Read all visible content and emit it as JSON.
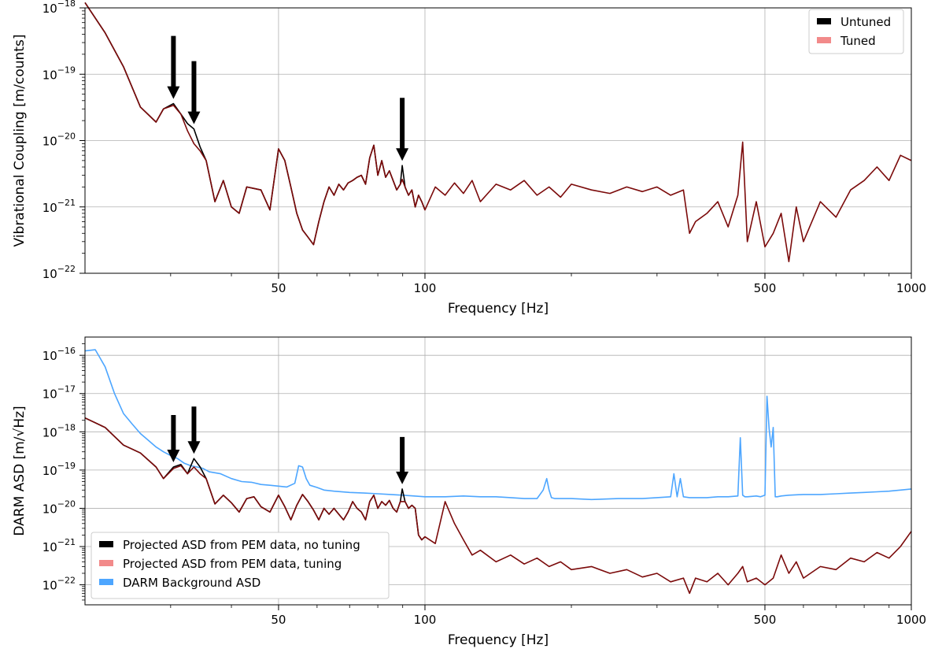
{
  "chart_data": [
    {
      "type": "line",
      "xlabel": "Frequency [Hz]",
      "ylabel": "Vibrational Coupling [m/counts]",
      "xscale": "log",
      "yscale": "log",
      "xlim": [
        20,
        1000
      ],
      "ylim": [
        1e-22,
        1e-18
      ],
      "xtick_labels": [
        {
          "value": 50,
          "label": "50"
        },
        {
          "value": 100,
          "label": "100"
        },
        {
          "value": 500,
          "label": "500"
        },
        {
          "value": 1000,
          "label": "1000"
        }
      ],
      "ytick_labels": [
        {
          "value": 1e-22,
          "base": "10",
          "exp": "−22"
        },
        {
          "value": 1e-21,
          "base": "10",
          "exp": "−21"
        },
        {
          "value": 1e-20,
          "base": "10",
          "exp": "−20"
        },
        {
          "value": 1e-19,
          "base": "10",
          "exp": "−19"
        },
        {
          "value": 1e-18,
          "base": "10",
          "exp": "−18"
        }
      ],
      "grid": true,
      "legend": "top-right",
      "arrows_at": [
        {
          "x": 30.4,
          "y": 3.6e-20
        },
        {
          "x": 33.5,
          "y": 1.5e-20
        },
        {
          "x": 89.8,
          "y": 4.2e-21
        }
      ],
      "series": [
        {
          "name": "Untuned",
          "color": "#000000",
          "legend_color": "#000000",
          "x": [
            20,
            22,
            24,
            26,
            28,
            29,
            30.4,
            31.5,
            32.5,
            33.5,
            34.5,
            35.5,
            37,
            38.5,
            40,
            41.5,
            43,
            44.5,
            46,
            48,
            50,
            51.5,
            53,
            54.5,
            56,
            57.5,
            59,
            60.5,
            62,
            63.5,
            65,
            66.5,
            68,
            69.5,
            71,
            72.5,
            74,
            75.5,
            77,
            78.5,
            80,
            81.5,
            83,
            84.5,
            86,
            87.5,
            89,
            89.8,
            91,
            92.5,
            94,
            95.5,
            97,
            98.5,
            100
          ],
          "y": [
            1.2e-18,
            4.2e-19,
            1.3e-19,
            3.2e-20,
            1.9e-20,
            3e-20,
            3.6e-20,
            2.5e-20,
            1.8e-20,
            1.5e-20,
            8e-21,
            5e-21,
            1.2e-21,
            2.5e-21,
            1e-21,
            8e-22,
            2e-21,
            1.9e-21,
            1.8e-21,
            9e-22,
            7.5e-21,
            5e-21,
            2e-21,
            8e-22,
            4.5e-22,
            3.5e-22,
            2.7e-22,
            6e-22,
            1.2e-21,
            2e-21,
            1.5e-21,
            2.2e-21,
            1.8e-21,
            2.3e-21,
            2.5e-21,
            2.8e-21,
            3e-21,
            2.2e-21,
            5.5e-21,
            8.5e-21,
            3e-21,
            5e-21,
            2.8e-21,
            3.5e-21,
            2.5e-21,
            1.8e-21,
            2.2e-21,
            4.2e-21,
            2e-21,
            1.5e-21,
            1.8e-21,
            1e-21,
            1.5e-21,
            1.2e-21,
            9e-22
          ]
        },
        {
          "name": "Tuned",
          "color": "#7b0a0a",
          "legend_color": "#f28a8a",
          "x": [
            20,
            22,
            24,
            26,
            28,
            29,
            30.4,
            31.5,
            32.5,
            33.5,
            34.5,
            35.5,
            37,
            38.5,
            40,
            41.5,
            43,
            44.5,
            46,
            48,
            50,
            51.5,
            53,
            54.5,
            56,
            57.5,
            59,
            60.5,
            62,
            63.5,
            65,
            66.5,
            68,
            69.5,
            71,
            72.5,
            74,
            75.5,
            77,
            78.5,
            80,
            81.5,
            83,
            84.5,
            86,
            87.5,
            89,
            89.8,
            91,
            92.5,
            94,
            95.5,
            97,
            98.5,
            100,
            105,
            110,
            115,
            120,
            125,
            130,
            140,
            150,
            160,
            170,
            180,
            190,
            200,
            220,
            240,
            260,
            280,
            300,
            320,
            340,
            350,
            360,
            380,
            400,
            420,
            440,
            450,
            460,
            480,
            500,
            520,
            540,
            560,
            580,
            600,
            650,
            700,
            750,
            800,
            850,
            900,
            950,
            1000
          ],
          "y": [
            1.2e-18,
            4.2e-19,
            1.3e-19,
            3.2e-20,
            1.9e-20,
            3e-20,
            3.4e-20,
            2.5e-20,
            1.4e-20,
            9e-21,
            7e-21,
            5e-21,
            1.2e-21,
            2.5e-21,
            1e-21,
            8e-22,
            2e-21,
            1.9e-21,
            1.8e-21,
            9e-22,
            7.5e-21,
            5e-21,
            2e-21,
            8e-22,
            4.5e-22,
            3.5e-22,
            2.7e-22,
            6e-22,
            1.2e-21,
            2e-21,
            1.5e-21,
            2.2e-21,
            1.8e-21,
            2.3e-21,
            2.5e-21,
            2.8e-21,
            3e-21,
            2.2e-21,
            5.5e-21,
            8.5e-21,
            3e-21,
            5e-21,
            2.8e-21,
            3.5e-21,
            2.5e-21,
            1.8e-21,
            2.2e-21,
            2.6e-21,
            2e-21,
            1.5e-21,
            1.8e-21,
            1e-21,
            1.5e-21,
            1.2e-21,
            9e-22,
            2e-21,
            1.5e-21,
            2.3e-21,
            1.6e-21,
            2.5e-21,
            1.2e-21,
            2.2e-21,
            1.8e-21,
            2.5e-21,
            1.5e-21,
            2e-21,
            1.4e-21,
            2.2e-21,
            1.8e-21,
            1.6e-21,
            2e-21,
            1.7e-21,
            2e-21,
            1.5e-21,
            1.8e-21,
            4e-22,
            6e-22,
            8e-22,
            1.2e-21,
            5e-22,
            1.5e-21,
            9.5e-21,
            3e-22,
            1.2e-21,
            2.5e-22,
            4e-22,
            8e-22,
            1.5e-22,
            1e-21,
            3e-22,
            1.2e-21,
            7e-22,
            1.8e-21,
            2.5e-21,
            4e-21,
            2.5e-21,
            6e-21,
            5e-21
          ]
        }
      ]
    },
    {
      "type": "line",
      "xlabel": "Frequency [Hz]",
      "ylabel": "DARM ASD [m/√Hz]",
      "xscale": "log",
      "yscale": "log",
      "xlim": [
        20,
        1000
      ],
      "ylim": [
        3e-23,
        3e-16
      ],
      "xtick_labels": [
        {
          "value": 50,
          "label": "50"
        },
        {
          "value": 100,
          "label": "100"
        },
        {
          "value": 500,
          "label": "500"
        },
        {
          "value": 1000,
          "label": "1000"
        }
      ],
      "ytick_labels": [
        {
          "value": 1e-22,
          "base": "10",
          "exp": "−22"
        },
        {
          "value": 1e-21,
          "base": "10",
          "exp": "−21"
        },
        {
          "value": 1e-20,
          "base": "10",
          "exp": "−20"
        },
        {
          "value": 1e-19,
          "base": "10",
          "exp": "−19"
        },
        {
          "value": 1e-18,
          "base": "10",
          "exp": "−18"
        },
        {
          "value": 1e-17,
          "base": "10",
          "exp": "−17"
        },
        {
          "value": 1e-16,
          "base": "10",
          "exp": "−16"
        }
      ],
      "grid": true,
      "legend": "lower-left",
      "arrows_at": [
        {
          "x": 30.4,
          "y": 1.2e-19
        },
        {
          "x": 33.5,
          "y": 2e-19
        },
        {
          "x": 89.8,
          "y": 3.2e-20
        }
      ],
      "series": [
        {
          "name": "Projected ASD from PEM data, no tuning",
          "color": "#000000",
          "legend_color": "#000000",
          "x": [
            20,
            22,
            24,
            26,
            28,
            29,
            30.4,
            31.5,
            32.5,
            33.5,
            34.5,
            35.5,
            37,
            38.5,
            40,
            41.5,
            43,
            44.5,
            46,
            48,
            50,
            51.5,
            53,
            54.5,
            56,
            57.5,
            59,
            60.5,
            62,
            63.5,
            65,
            66.5,
            68,
            69.5,
            71,
            72.5,
            74,
            75.5,
            77,
            78.5,
            80,
            81.5,
            83,
            84.5,
            86,
            87.5,
            89,
            89.8,
            91,
            92.5,
            94,
            95.5,
            97,
            98.5,
            100
          ],
          "y": [
            2.3e-18,
            1.3e-18,
            4.5e-19,
            2.8e-19,
            1.2e-19,
            6e-20,
            1.2e-19,
            1.4e-19,
            8e-20,
            2e-19,
            1.2e-19,
            6e-20,
            1.3e-20,
            2.2e-20,
            1.4e-20,
            8e-21,
            1.8e-20,
            2e-20,
            1.1e-20,
            8e-21,
            2.2e-20,
            1.1e-20,
            5e-21,
            1.2e-20,
            2.3e-20,
            1.5e-20,
            9e-21,
            5e-21,
            1e-20,
            7e-21,
            1e-20,
            7e-21,
            5e-21,
            8e-21,
            1.5e-20,
            1e-20,
            8e-21,
            5e-21,
            1.5e-20,
            2.2e-20,
            1e-20,
            1.5e-20,
            1.2e-20,
            1.6e-20,
            1e-20,
            8e-21,
            1.5e-20,
            3.2e-20,
            1.5e-20,
            1e-20,
            1.2e-20,
            1e-20,
            2e-21,
            1.5e-21,
            1.8e-21
          ]
        },
        {
          "name": "Projected ASD from PEM data, tuning",
          "color": "#7b0a0a",
          "legend_color": "#f28a8a",
          "x": [
            20,
            22,
            24,
            26,
            28,
            29,
            30.4,
            31.5,
            32.5,
            33.5,
            34.5,
            35.5,
            37,
            38.5,
            40,
            41.5,
            43,
            44.5,
            46,
            48,
            50,
            51.5,
            53,
            54.5,
            56,
            57.5,
            59,
            60.5,
            62,
            63.5,
            65,
            66.5,
            68,
            69.5,
            71,
            72.5,
            74,
            75.5,
            77,
            78.5,
            80,
            81.5,
            83,
            84.5,
            86,
            87.5,
            89,
            89.8,
            91,
            92.5,
            94,
            95.5,
            97,
            98.5,
            100,
            105,
            110,
            115,
            120,
            125,
            130,
            140,
            150,
            160,
            170,
            180,
            190,
            200,
            220,
            240,
            260,
            280,
            300,
            320,
            340,
            350,
            360,
            380,
            400,
            420,
            440,
            450,
            460,
            480,
            500,
            520,
            540,
            560,
            580,
            600,
            650,
            700,
            750,
            800,
            850,
            900,
            950,
            1000
          ],
          "y": [
            2.3e-18,
            1.3e-18,
            4.5e-19,
            2.8e-19,
            1.2e-19,
            6e-20,
            1.1e-19,
            1.3e-19,
            8e-20,
            1.2e-19,
            8e-20,
            6e-20,
            1.3e-20,
            2.2e-20,
            1.4e-20,
            8e-21,
            1.8e-20,
            2e-20,
            1.1e-20,
            8e-21,
            2.2e-20,
            1.1e-20,
            5e-21,
            1.2e-20,
            2.3e-20,
            1.5e-20,
            9e-21,
            5e-21,
            1e-20,
            7e-21,
            1e-20,
            7e-21,
            5e-21,
            8e-21,
            1.5e-20,
            1e-20,
            8e-21,
            5e-21,
            1.5e-20,
            2.2e-20,
            1e-20,
            1.5e-20,
            1.2e-20,
            1.6e-20,
            1e-20,
            8e-21,
            1.5e-20,
            1.5e-20,
            1.5e-20,
            1e-20,
            1.2e-20,
            1e-20,
            2e-21,
            1.5e-21,
            1.8e-21,
            1.2e-21,
            1.5e-20,
            4e-21,
            1.5e-21,
            6e-22,
            8e-22,
            4e-22,
            6e-22,
            3.5e-22,
            5e-22,
            3e-22,
            4e-22,
            2.5e-22,
            3e-22,
            2e-22,
            2.5e-22,
            1.6e-22,
            2e-22,
            1.2e-22,
            1.5e-22,
            6e-23,
            1.5e-22,
            1.2e-22,
            2e-22,
            1e-22,
            2e-22,
            3e-22,
            1.2e-22,
            1.5e-22,
            1e-22,
            1.5e-22,
            6e-22,
            2e-22,
            4e-22,
            1.5e-22,
            3e-22,
            2.5e-22,
            5e-22,
            4e-22,
            7e-22,
            5e-22,
            1e-21,
            2.5e-21
          ]
        },
        {
          "name": "DARM Background ASD",
          "color": "#4da6ff",
          "legend_color": "#4da6ff",
          "x": [
            20,
            21,
            22,
            23,
            24,
            25,
            26,
            27,
            28,
            29,
            30,
            31,
            32,
            33,
            34,
            35,
            36,
            38,
            40,
            42,
            44,
            46,
            48,
            50,
            52,
            54,
            55,
            56,
            57,
            58,
            60,
            62,
            65,
            70,
            75,
            80,
            85,
            90,
            95,
            100,
            110,
            120,
            130,
            140,
            150,
            160,
            170,
            175,
            178,
            180,
            182,
            185,
            190,
            200,
            220,
            250,
            280,
            300,
            320,
            325,
            330,
            335,
            340,
            350,
            380,
            400,
            420,
            440,
            445,
            450,
            455,
            460,
            480,
            490,
            500,
            505,
            510,
            515,
            520,
            525,
            530,
            540,
            560,
            600,
            650,
            700,
            750,
            800,
            850,
            900,
            950,
            1000
          ],
          "y": [
            1.3e-16,
            1.4e-16,
            5e-17,
            1e-17,
            3e-18,
            1.6e-18,
            9e-19,
            6e-19,
            4e-19,
            3e-19,
            2.4e-19,
            2e-19,
            1.5e-19,
            1.3e-19,
            1.2e-19,
            1.1e-19,
            9e-20,
            8e-20,
            6e-20,
            5e-20,
            4.8e-20,
            4.2e-20,
            4e-20,
            3.8e-20,
            3.6e-20,
            4.5e-20,
            1.3e-19,
            1.2e-19,
            6e-20,
            4e-20,
            3.5e-20,
            3e-20,
            2.8e-20,
            2.6e-20,
            2.5e-20,
            2.4e-20,
            2.3e-20,
            2.2e-20,
            2.1e-20,
            2e-20,
            2e-20,
            2.1e-20,
            2e-20,
            2e-20,
            1.9e-20,
            1.8e-20,
            1.8e-20,
            3e-20,
            6e-20,
            3e-20,
            1.9e-20,
            1.8e-20,
            1.8e-20,
            1.8e-20,
            1.7e-20,
            1.8e-20,
            1.8e-20,
            1.9e-20,
            2e-20,
            8e-20,
            2e-20,
            6e-20,
            2e-20,
            1.9e-20,
            1.9e-20,
            2e-20,
            2e-20,
            2.1e-20,
            7e-19,
            2.2e-20,
            2e-20,
            2e-20,
            2.1e-20,
            2e-20,
            2.2e-20,
            8.5e-18,
            1.2e-18,
            4e-19,
            1.3e-18,
            2e-20,
            2e-20,
            2.1e-20,
            2.2e-20,
            2.3e-20,
            2.3e-20,
            2.4e-20,
            2.5e-20,
            2.6e-20,
            2.7e-20,
            2.8e-20,
            3e-20,
            3.2e-20
          ]
        }
      ]
    }
  ]
}
